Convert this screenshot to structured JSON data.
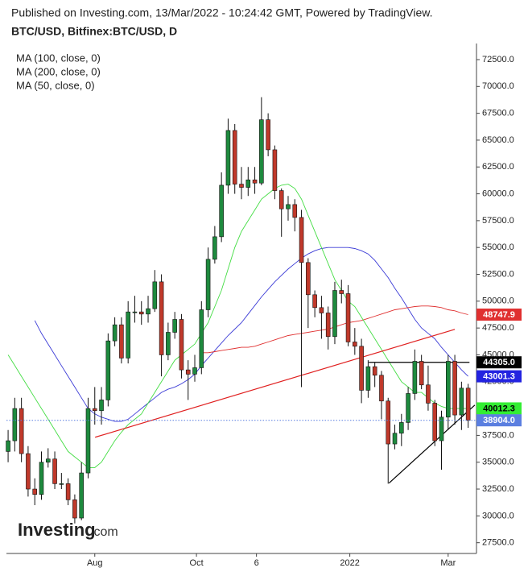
{
  "chart_data": {
    "type": "candlestick",
    "subtitle": "Published on Investing.com, 13/Mar/2022 - 10:24:42 GMT, Powered by TradingView.",
    "title": "BTC/USD, Bitfinex:BTC/USD, D",
    "watermark": "Investing",
    "watermark_suffix": ".com",
    "xlim": [
      -1,
      281
    ],
    "xticks": [
      {
        "value": 52,
        "label": "Aug"
      },
      {
        "value": 113,
        "label": "Oct"
      },
      {
        "value": 149,
        "label": "6"
      },
      {
        "value": 205,
        "label": "2022"
      },
      {
        "value": 264,
        "label": "Mar"
      }
    ],
    "ylim": [
      26500,
      74000
    ],
    "yticks": [
      {
        "value": 27500,
        "label": "27500.0"
      },
      {
        "value": 30000,
        "label": "30000.0"
      },
      {
        "value": 32500,
        "label": "32500.0"
      },
      {
        "value": 35000,
        "label": "35000.0"
      },
      {
        "value": 37500,
        "label": "37500.0"
      },
      {
        "value": 40000,
        "label": "40000.0"
      },
      {
        "value": 42500,
        "label": "42500.0"
      },
      {
        "value": 45000,
        "label": "45000.0"
      },
      {
        "value": 47500,
        "label": "47500.0"
      },
      {
        "value": 50000,
        "label": "50000.0"
      },
      {
        "value": 52500,
        "label": "52500.0"
      },
      {
        "value": 55000,
        "label": "55000.0"
      },
      {
        "value": 57500,
        "label": "57500.0"
      },
      {
        "value": 60000,
        "label": "60000.0"
      },
      {
        "value": 62500,
        "label": "62500.0"
      },
      {
        "value": 65000,
        "label": "65000.0"
      },
      {
        "value": 67500,
        "label": "67500.0"
      },
      {
        "value": 70000,
        "label": "70000.0"
      },
      {
        "value": 72500,
        "label": "72500.0"
      }
    ],
    "up_color": "#1e8a3e",
    "down_color": "#c0392b",
    "x": [
      0,
      4,
      8,
      12,
      16,
      20,
      24,
      28,
      32,
      36,
      40,
      44,
      48,
      52,
      56,
      60,
      64,
      68,
      72,
      76,
      80,
      84,
      88,
      92,
      96,
      100,
      104,
      108,
      112,
      116,
      120,
      124,
      128,
      132,
      136,
      140,
      144,
      148,
      152,
      156,
      160,
      164,
      168,
      172,
      176,
      180,
      184,
      188,
      192,
      196,
      200,
      204,
      208,
      212,
      216,
      220,
      224,
      228,
      232,
      236,
      240,
      244,
      248,
      252,
      256,
      260,
      264,
      268,
      272,
      276
    ],
    "open": [
      36000,
      37000,
      40000,
      35800,
      32500,
      32000,
      35000,
      35300,
      33000,
      33000,
      31500,
      29800,
      34000,
      40000,
      39800,
      40800,
      46300,
      47800,
      44700,
      49000,
      49000,
      48800,
      49300,
      51800,
      45000,
      47100,
      48300,
      43600,
      43200,
      43800,
      49200,
      53900,
      56000,
      60800,
      65900,
      60900,
      60600,
      61300,
      61000,
      66900,
      64100,
      60300,
      58600,
      59000,
      57800,
      53600,
      50600,
      49400,
      48900,
      46700,
      51000,
      50700,
      46200,
      45800,
      41700,
      43900,
      43100,
      40700,
      36700,
      37700,
      38700,
      41400,
      44400,
      42200,
      40500,
      37000,
      39200,
      44400,
      39400,
      41900
    ],
    "high": [
      38000,
      41000,
      41000,
      36500,
      33500,
      36000,
      36300,
      36000,
      34000,
      33500,
      32000,
      35000,
      41000,
      42000,
      42000,
      47000,
      48500,
      48500,
      50000,
      50500,
      50000,
      50500,
      52900,
      52500,
      48000,
      49000,
      48800,
      44500,
      45000,
      50000,
      55000,
      57000,
      62000,
      67000,
      66500,
      62500,
      62500,
      62500,
      69000,
      67500,
      64500,
      60500,
      59800,
      59500,
      58500,
      54000,
      51000,
      50500,
      49500,
      51800,
      52000,
      51500,
      47500,
      46500,
      44500,
      44300,
      43500,
      41000,
      38500,
      39500,
      42000,
      45500,
      45000,
      44000,
      40800,
      39800,
      45000,
      45000,
      42500,
      42300
    ],
    "low": [
      35000,
      36000,
      35000,
      31800,
      31000,
      31500,
      34500,
      32500,
      32500,
      31000,
      29300,
      29600,
      33500,
      38500,
      38500,
      40200,
      45800,
      44200,
      44200,
      48000,
      47800,
      48000,
      49000,
      43000,
      44500,
      46500,
      42800,
      40800,
      42500,
      43200,
      48500,
      53500,
      55500,
      60000,
      60000,
      59500,
      59800,
      60000,
      60800,
      63500,
      59500,
      56000,
      57500,
      56500,
      42000,
      47500,
      48500,
      46500,
      45500,
      46000,
      49800,
      45800,
      45000,
      40500,
      41000,
      42000,
      39000,
      33000,
      36200,
      36500,
      38000,
      40800,
      41800,
      39800,
      36500,
      34300,
      38000,
      38500,
      38000,
      38200
    ],
    "close": [
      37000,
      40000,
      35800,
      32500,
      32000,
      35000,
      35300,
      33000,
      33000,
      31500,
      29800,
      34000,
      40000,
      39800,
      40800,
      46300,
      47800,
      44700,
      49000,
      49000,
      48800,
      49300,
      51800,
      45000,
      47100,
      48300,
      43600,
      43200,
      43800,
      49200,
      53900,
      56000,
      60800,
      65900,
      60900,
      60600,
      61300,
      61000,
      66900,
      64100,
      60300,
      58600,
      59000,
      57800,
      53600,
      50600,
      49400,
      48900,
      46700,
      51000,
      50700,
      46200,
      45800,
      41700,
      43900,
      43100,
      40700,
      36700,
      37700,
      38700,
      41400,
      44400,
      42200,
      40500,
      37000,
      39200,
      44400,
      39400,
      41900,
      38900
    ],
    "series": [
      {
        "name": "MA (100, close, 0)",
        "color": "#3b3bd6",
        "values": [
          null,
          null,
          null,
          null,
          48200,
          47000,
          46000,
          45000,
          44000,
          43000,
          42000,
          41000,
          40000,
          39500,
          39200,
          39000,
          38800,
          38800,
          39000,
          39500,
          40000,
          40500,
          41000,
          41500,
          41800,
          42000,
          42300,
          42700,
          43200,
          44000,
          44700,
          45400,
          46100,
          46800,
          47400,
          48000,
          48800,
          49600,
          50400,
          51100,
          51800,
          52400,
          53000,
          53500,
          54000,
          54400,
          54700,
          54900,
          55000,
          55000,
          55000,
          55000,
          54900,
          54700,
          54400,
          53800,
          53000,
          52200,
          51200,
          50300,
          49300,
          48300,
          47500,
          47000,
          46500,
          45700,
          45000,
          44300,
          43600,
          43000
        ]
      },
      {
        "name": "MA (200, close, 0)",
        "color": "#e03030",
        "values": [
          null,
          null,
          null,
          null,
          null,
          null,
          null,
          null,
          null,
          null,
          null,
          null,
          null,
          null,
          null,
          null,
          null,
          null,
          null,
          null,
          null,
          null,
          null,
          null,
          null,
          null,
          null,
          null,
          null,
          45200,
          45200,
          45300,
          45400,
          45500,
          45600,
          45700,
          45700,
          45800,
          46000,
          46200,
          46400,
          46600,
          46800,
          46900,
          47000,
          47100,
          47200,
          47300,
          47400,
          47600,
          47800,
          48000,
          48100,
          48200,
          48400,
          48600,
          48800,
          49000,
          49200,
          49300,
          49400,
          49500,
          49550,
          49550,
          49500,
          49400,
          49200,
          49100,
          48900,
          48750
        ]
      },
      {
        "name": "MA (50, close, 0)",
        "color": "#44dd44",
        "values": [
          45000,
          44000,
          43000,
          42000,
          41000,
          40000,
          39000,
          38000,
          37000,
          36000,
          35500,
          35000,
          34500,
          34500,
          35000,
          36000,
          37000,
          37800,
          38500,
          39000,
          39500,
          40500,
          41500,
          42500,
          43500,
          44500,
          45000,
          45500,
          46000,
          47000,
          48000,
          49500,
          51000,
          53000,
          55000,
          56500,
          57500,
          58500,
          59500,
          60000,
          60500,
          60800,
          60900,
          60500,
          59500,
          58000,
          56500,
          55000,
          53500,
          52000,
          51000,
          50000,
          49500,
          48500,
          47500,
          46500,
          45500,
          44500,
          43500,
          42500,
          42000,
          41500,
          41500,
          41000,
          40500,
          40200,
          40000,
          40000,
          40000,
          40000
        ]
      }
    ],
    "trendlines": [
      {
        "color": "#e02020",
        "x": [
          52.2,
          268
        ],
        "y": [
          37325,
          47375
        ]
      },
      {
        "color": "#000000",
        "x": [
          228.5,
          280
        ],
        "y": [
          33050,
          40325
        ]
      },
      {
        "color": "#000000",
        "x": [
          216.4,
          276.8
        ],
        "y": [
          44305,
          44305
        ]
      }
    ],
    "price_labels": [
      {
        "value": 48747.9,
        "color": "#e03030",
        "text_color": "#ffffff"
      },
      {
        "value": 44305,
        "label": "44305.0",
        "color": "#000000",
        "text_color": "#ffffff"
      },
      {
        "value": 43001.3,
        "color": "#2323e0",
        "text_color": "#ffffff"
      },
      {
        "value": 40012.3,
        "color": "#33ee33",
        "text_color": "#000000"
      },
      {
        "value": 38904,
        "label": "38904.0",
        "color": "#5b7fe0",
        "text_color": "#ffffff",
        "line": true
      }
    ]
  }
}
